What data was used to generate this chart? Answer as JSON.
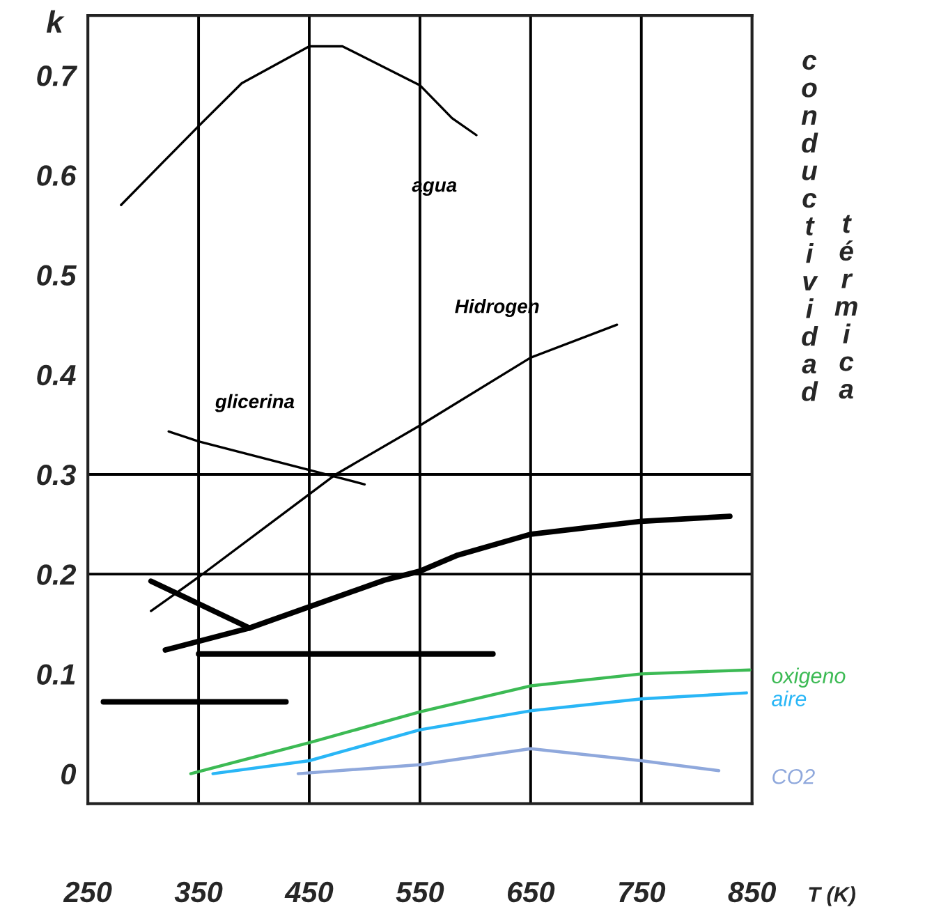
{
  "chart_data": {
    "type": "line",
    "xlabel": "T (K)",
    "ylabel": "k",
    "annotations": [
      "conductividad",
      "térmica"
    ],
    "xlim": [
      250,
      850
    ],
    "ylim": [
      -0.03,
      0.76
    ],
    "xticks": [
      250,
      350,
      450,
      550,
      650,
      750,
      850
    ],
    "yticks": [
      0,
      0.1,
      0.2,
      0.3,
      0.4,
      0.5,
      0.6,
      0.7
    ],
    "grid": false,
    "marker": "none",
    "line_style": "solid",
    "ref_lines": [
      {
        "axis": "x",
        "value": 350,
        "color": "#000000"
      },
      {
        "axis": "x",
        "value": 450,
        "color": "#000000"
      },
      {
        "axis": "x",
        "value": 550,
        "color": "#000000"
      },
      {
        "axis": "x",
        "value": 650,
        "color": "#000000"
      },
      {
        "axis": "x",
        "value": 750,
        "color": "#000000"
      },
      {
        "axis": "y",
        "value": 0.2,
        "color": "#000000"
      },
      {
        "axis": "y",
        "value": 0.3,
        "color": "#000000"
      }
    ],
    "series": [
      {
        "name": "agua",
        "color": "#000000",
        "x": [
          280,
          318,
          350,
          389,
          450,
          480,
          550,
          579,
          601
        ],
        "values": [
          0.57,
          0.613,
          0.649,
          0.692,
          0.729,
          0.729,
          0.69,
          0.657,
          0.64
        ]
      },
      {
        "name": "Hidrogen",
        "color": "#000000",
        "x": [
          307,
          350,
          474,
          550,
          650,
          728
        ],
        "values": [
          0.163,
          0.197,
          0.3,
          0.349,
          0.417,
          0.45
        ]
      },
      {
        "name": "glicerina",
        "color": "#000000",
        "x": [
          323,
          350,
          500
        ],
        "values": [
          0.343,
          0.333,
          0.29
        ]
      },
      {
        "color": "#000000",
        "x": [
          320,
          396,
          518,
          550,
          584,
          650,
          750,
          830
        ],
        "values": [
          0.124,
          0.146,
          0.194,
          0.203,
          0.219,
          0.24,
          0.253,
          0.258
        ]
      },
      {
        "color": "#000000",
        "x": [
          307,
          396
        ],
        "values": [
          0.193,
          0.146
        ]
      },
      {
        "color": "#000000",
        "x": [
          350,
          616
        ],
        "values": [
          0.12,
          0.12
        ]
      },
      {
        "color": "#000000",
        "x": [
          264,
          429
        ],
        "values": [
          0.072,
          0.072
        ]
      },
      {
        "name": "oxigeno",
        "color": "#3cba54",
        "x": [
          343,
          450,
          550,
          650,
          750,
          848
        ],
        "values": [
          0.0,
          0.031,
          0.062,
          0.088,
          0.1,
          0.104
        ]
      },
      {
        "name": "aire",
        "color": "#29b6f6",
        "x": [
          363,
          450,
          550,
          650,
          750,
          845
        ],
        "values": [
          0.0,
          0.013,
          0.044,
          0.063,
          0.075,
          0.081
        ]
      },
      {
        "name": "CO2",
        "color": "#8fa8dc",
        "x": [
          440,
          550,
          650,
          750,
          820
        ],
        "values": [
          0.0,
          0.009,
          0.025,
          0.013,
          0.003
        ]
      }
    ]
  }
}
